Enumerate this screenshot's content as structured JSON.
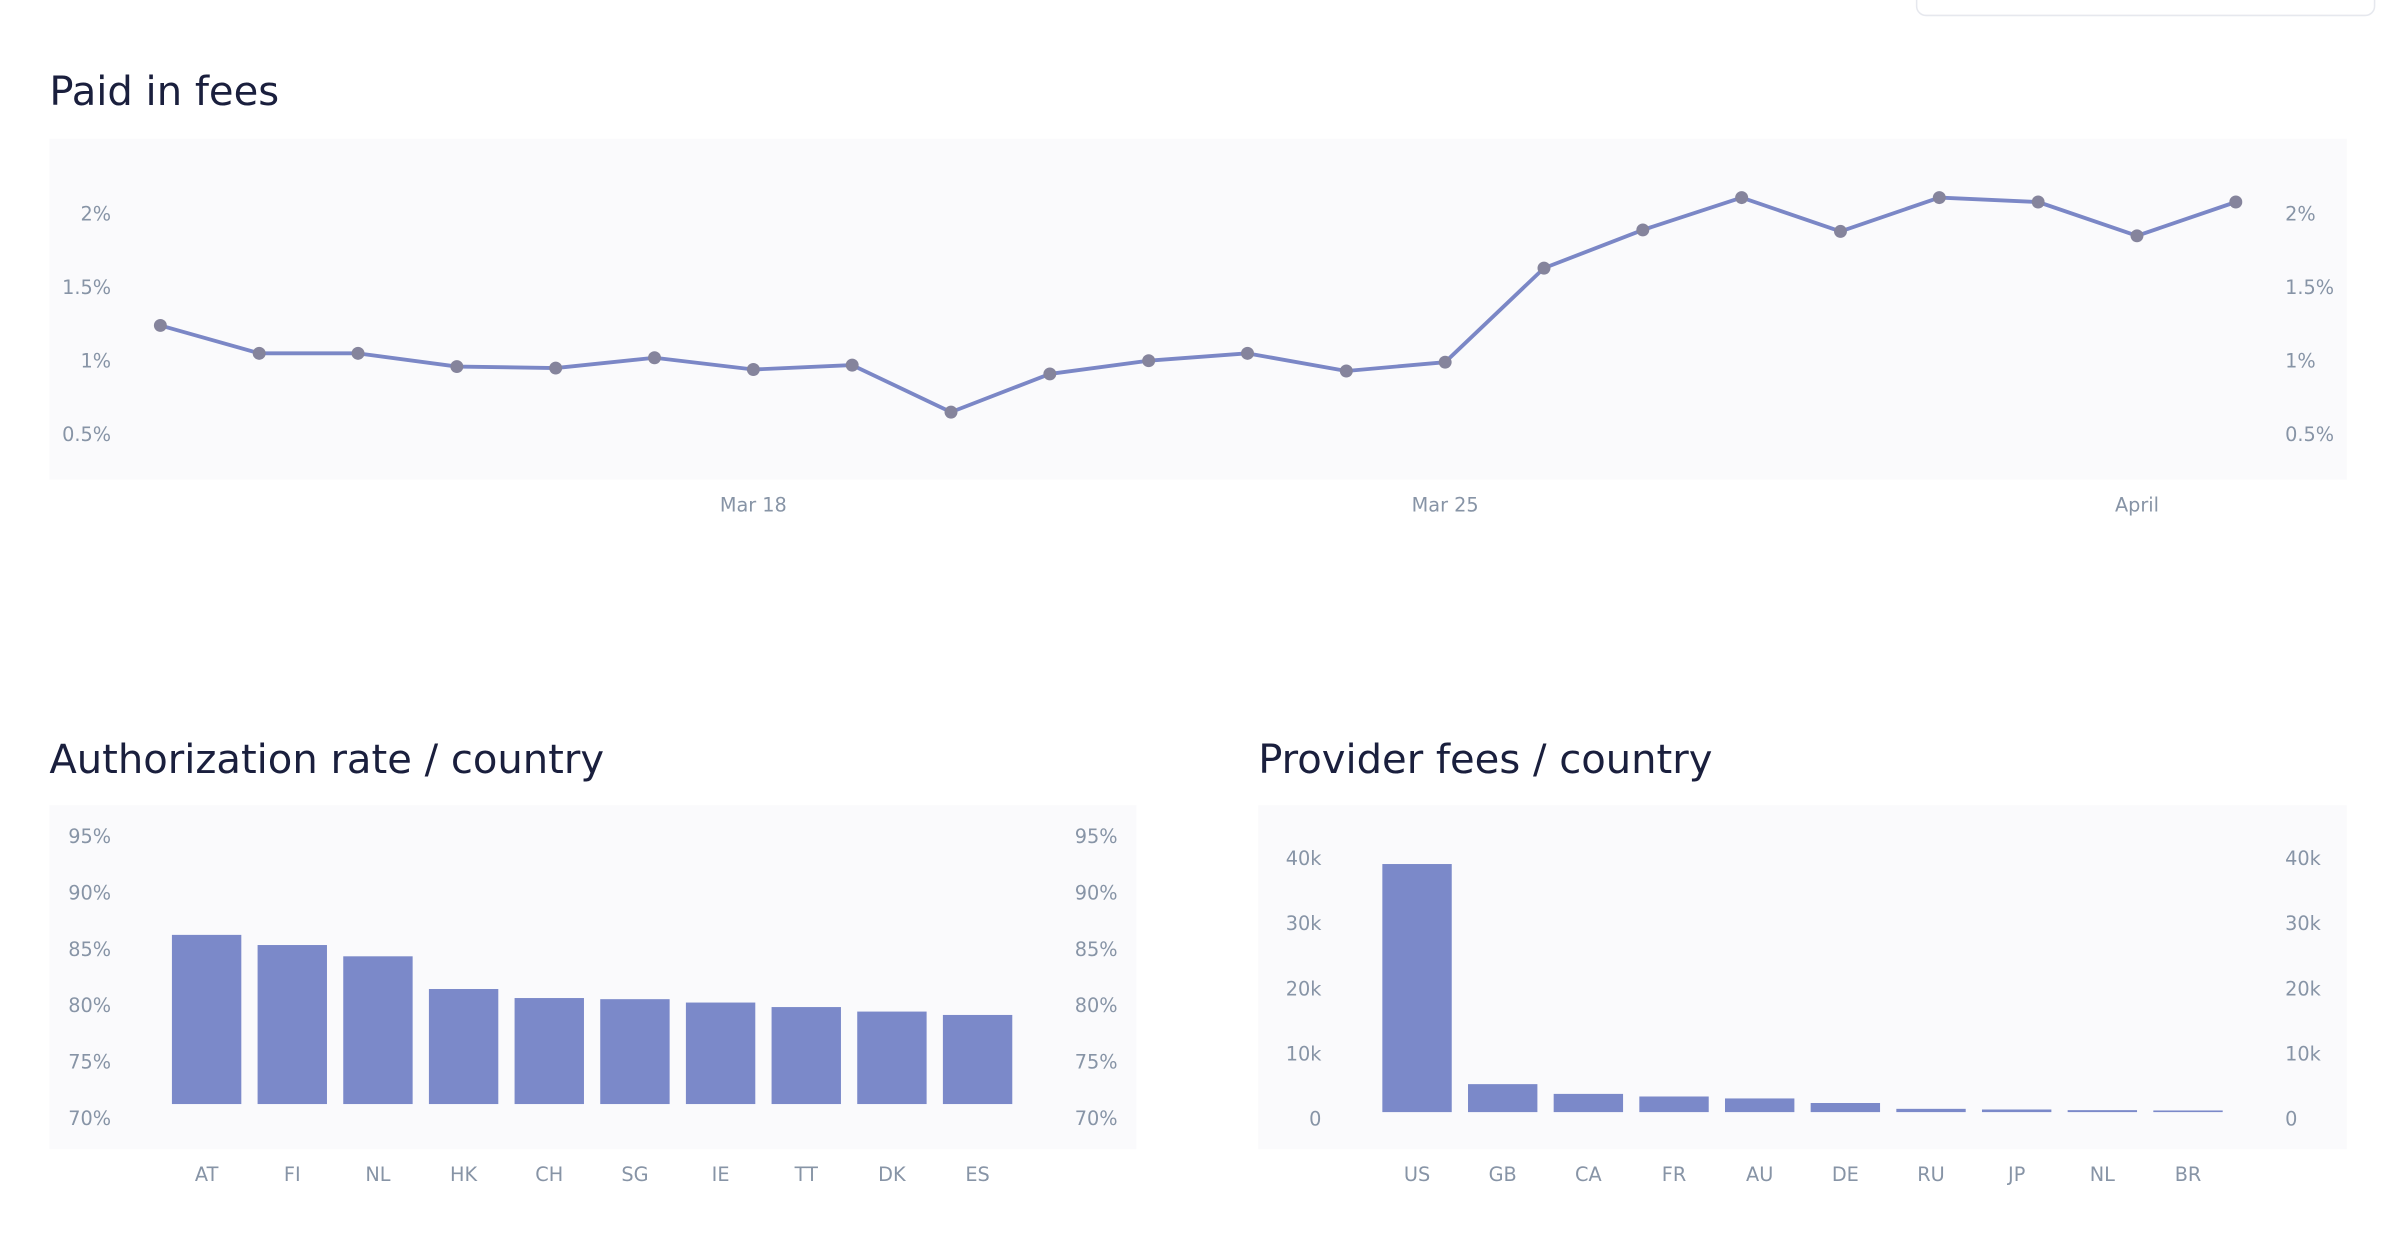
{
  "chart_data": [
    {
      "type": "line",
      "title": "Paid in fees",
      "categories": [
        null,
        null,
        null,
        null,
        null,
        null,
        "Mar 18",
        null,
        null,
        null,
        null,
        null,
        null,
        "Mar 25",
        null,
        null,
        null,
        null,
        null,
        null,
        "April",
        null
      ],
      "values": [
        1.25,
        1.06,
        1.06,
        0.97,
        0.96,
        1.03,
        0.95,
        0.98,
        0.66,
        0.92,
        1.01,
        1.06,
        0.94,
        1.0,
        1.64,
        1.9,
        2.12,
        1.89,
        2.12,
        2.09,
        1.86,
        2.09
      ],
      "color": "#7b87c6",
      "marker_color": "#85849c",
      "ylim": [
        0.2,
        2.52
      ],
      "yticks": [
        {
          "value": 0.5,
          "label": "0.5%"
        },
        {
          "value": 1,
          "label": "1%"
        },
        {
          "value": 1.5,
          "label": "1.5%"
        },
        {
          "value": 2,
          "label": "2%"
        }
      ]
    },
    {
      "type": "bar",
      "title": "Authorization rate / country",
      "categories": [
        "AT",
        "FI",
        "NL",
        "HK",
        "CH",
        "SG",
        "IE",
        "TT",
        "DK",
        "ES"
      ],
      "values": [
        85.0,
        84.1,
        83.1,
        80.2,
        79.4,
        79.3,
        79.0,
        78.6,
        78.2,
        77.9
      ],
      "color": "#7b89c9",
      "ylim": [
        66.0,
        96.5
      ],
      "yticks": [
        {
          "value": 70,
          "label": "70%"
        },
        {
          "value": 75,
          "label": "75%"
        },
        {
          "value": 80,
          "label": "80%"
        },
        {
          "value": 85,
          "label": "85%"
        },
        {
          "value": 90,
          "label": "90%"
        },
        {
          "value": 95,
          "label": "95%"
        }
      ]
    },
    {
      "type": "bar",
      "title": "Provider fees / country",
      "categories": [
        "US",
        "GB",
        "CA",
        "FR",
        "AU",
        "DE",
        "RU",
        "JP",
        "NL",
        "BR"
      ],
      "values": [
        38150,
        4300,
        2800,
        2400,
        2100,
        1400,
        500,
        400,
        300,
        250
      ],
      "color": "#7b89c9",
      "ylim": [
        -5700,
        47200
      ],
      "yticks": [
        0,
        {
          "value": 10000,
          "label": "10k"
        },
        {
          "value": 20000,
          "label": "20k"
        },
        {
          "value": 30000,
          "label": "30k"
        },
        {
          "value": 40000,
          "label": "40k"
        }
      ]
    }
  ]
}
